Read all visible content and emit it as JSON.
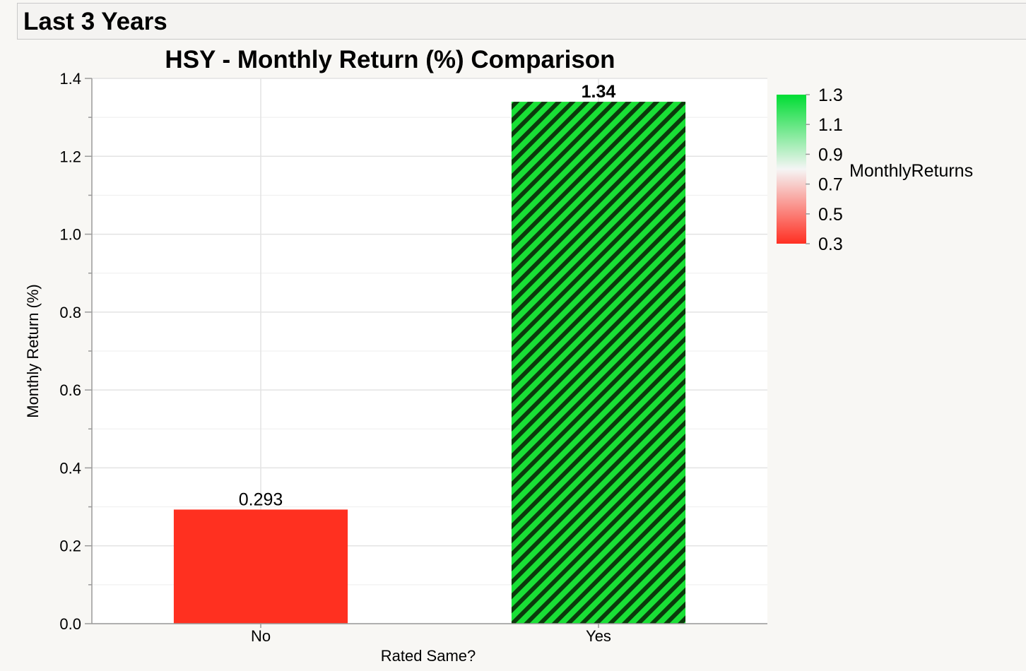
{
  "header": {
    "title": "Last 3 Years"
  },
  "chart_data": {
    "type": "bar",
    "title": "HSY - Monthly Return (%) Comparison",
    "xlabel": "Rated Same?",
    "ylabel": "Monthly Return (%)",
    "categories": [
      "No",
      "Yes"
    ],
    "values": [
      0.293,
      1.34
    ],
    "value_labels": [
      "0.293",
      "1.34"
    ],
    "ylim": [
      0,
      1.4
    ],
    "y_ticks": [
      "0.0",
      "0.2",
      "0.4",
      "0.6",
      "0.8",
      "1.0",
      "1.2",
      "1.4"
    ],
    "grid": true,
    "bar_fill": [
      "solid",
      "hatched"
    ],
    "colors": {
      "no_bar": "#ff3020",
      "yes_bar": "#19e036",
      "yes_hatch": "#0b3a0b",
      "grid": "#e3e3e3"
    },
    "color_legend": {
      "title": "MonthlyReturns",
      "placement": "right",
      "ticks": [
        "1.3",
        "1.1",
        "0.9",
        "0.7",
        "0.5",
        "0.3"
      ],
      "range": [
        0.3,
        1.3
      ],
      "colors": {
        "low": "#ff2f22",
        "mid": "#f5f5f5",
        "high": "#00dd33"
      }
    }
  }
}
